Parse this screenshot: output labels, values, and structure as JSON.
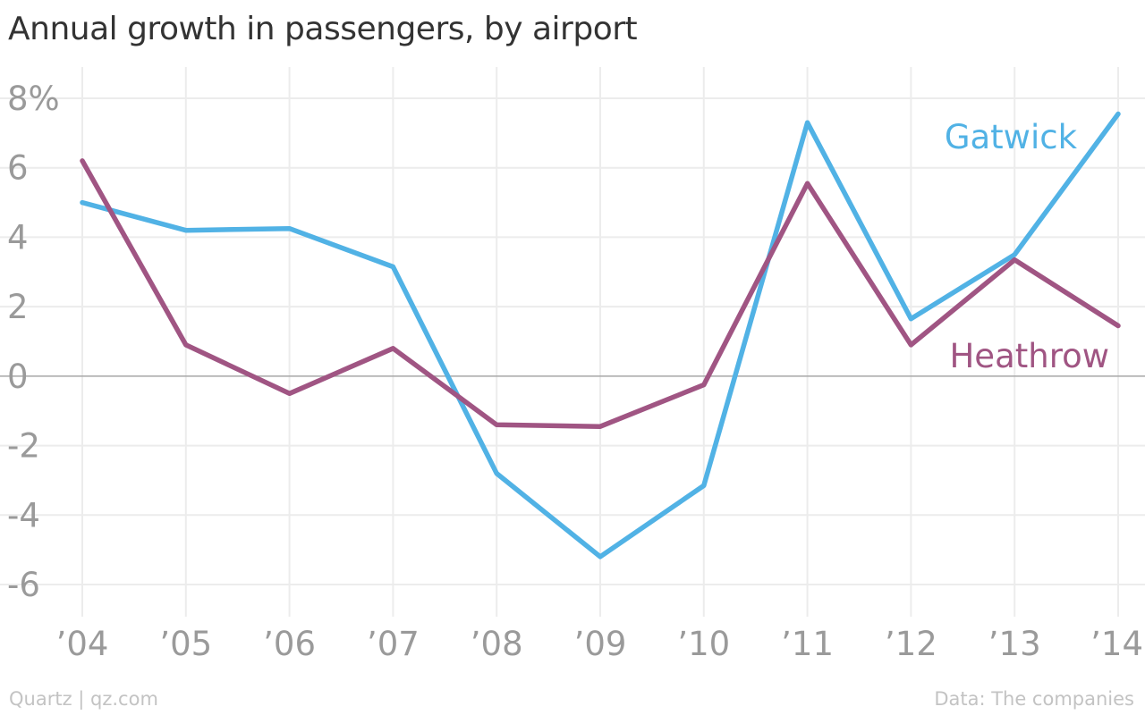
{
  "chart_data": {
    "type": "line",
    "title": "Annual growth in passengers, by airport",
    "categories": [
      "’04",
      "’05",
      "’06",
      "’07",
      "’08",
      "’09",
      "’10",
      "’11",
      "’12",
      "’13",
      "’14"
    ],
    "y_ticks": [
      "8%",
      "6",
      "4",
      "2",
      "0",
      "-2",
      "-4",
      "-6"
    ],
    "y_tick_values": [
      8,
      6,
      4,
      2,
      0,
      -2,
      -4,
      -6
    ],
    "ylim": [
      -7,
      8.5
    ],
    "grid": true,
    "series": [
      {
        "name": "Gatwick",
        "color": "#51b2e5",
        "values": [
          5.0,
          4.2,
          4.25,
          3.15,
          -2.8,
          -5.2,
          -3.15,
          7.3,
          1.65,
          3.5,
          7.55
        ]
      },
      {
        "name": "Heathrow",
        "color": "#a05583",
        "values": [
          6.2,
          0.9,
          -0.5,
          0.8,
          -1.4,
          -1.45,
          -0.25,
          5.55,
          0.9,
          3.35,
          1.45
        ]
      }
    ]
  },
  "footer": {
    "source_left": "Quartz | qz.com",
    "source_right": "Data: The companies"
  }
}
